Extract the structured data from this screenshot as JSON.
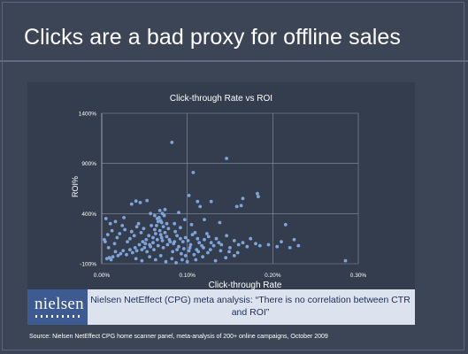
{
  "slide": {
    "title": "Clicks are a bad proxy for offline sales",
    "banner_logo": "nielsen",
    "banner_text": "Nielsen NetEffect (CPG) meta analysis: “There is no correlation between CTR and ROI”",
    "source": "Source: Nielsen NetEffect CPG home scanner panel, meta-analysis of 200+ online campaigns, October 2009"
  },
  "colors": {
    "background": "#3b4556",
    "chart_background": "#333d4d",
    "point": "#7fa5dc",
    "banner": "#dde3ee",
    "logo": "#3d5a92"
  },
  "chart_data": {
    "type": "scatter",
    "title": "Click-through Rate vs ROI",
    "xlabel": "Click-through Rate",
    "ylabel": "ROI%",
    "xlim": [
      0,
      0.3
    ],
    "ylim": [
      -100,
      1400
    ],
    "x_ticks": [
      0,
      0.1,
      0.2,
      0.3
    ],
    "x_tick_labels": [
      "0.00%",
      "0.10%",
      "0.20%",
      "0.30%"
    ],
    "y_ticks": [
      -100,
      400,
      900,
      1400
    ],
    "y_tick_labels": [
      "-100%",
      "400%",
      "900%",
      "1400%"
    ],
    "grid": true,
    "legend": false,
    "series": [
      {
        "points": [
          [
            0.082,
            1110
          ],
          [
            0.146,
            950
          ],
          [
            0.107,
            810
          ],
          [
            0.165,
            550
          ],
          [
            0.102,
            580
          ],
          [
            0.182,
            600
          ],
          [
            0.183,
            570
          ],
          [
            0.035,
            495
          ],
          [
            0.04,
            525
          ],
          [
            0.045,
            510
          ],
          [
            0.053,
            530
          ],
          [
            0.158,
            470
          ],
          [
            0.128,
            520
          ],
          [
            0.163,
            480
          ],
          [
            0.112,
            520
          ],
          [
            0.115,
            470
          ],
          [
            0.09,
            410
          ],
          [
            0.074,
            440
          ],
          [
            0.071,
            400
          ],
          [
            0.068,
            430
          ],
          [
            0.062,
            380
          ],
          [
            0.067,
            360
          ],
          [
            0.066,
            320
          ],
          [
            0.064,
            280
          ],
          [
            0.07,
            310
          ],
          [
            0.072,
            270
          ],
          [
            0.076,
            300
          ],
          [
            0.078,
            250
          ],
          [
            0.074,
            210
          ],
          [
            0.069,
            190
          ],
          [
            0.063,
            200
          ],
          [
            0.06,
            160
          ],
          [
            0.055,
            180
          ],
          [
            0.052,
            140
          ],
          [
            0.049,
            250
          ],
          [
            0.046,
            210
          ],
          [
            0.043,
            300
          ],
          [
            0.041,
            270
          ],
          [
            0.038,
            180
          ],
          [
            0.035,
            220
          ],
          [
            0.033,
            150
          ],
          [
            0.03,
            120
          ],
          [
            0.027,
            240
          ],
          [
            0.024,
            280
          ],
          [
            0.021,
            200
          ],
          [
            0.018,
            160
          ],
          [
            0.015,
            100
          ],
          [
            0.012,
            230
          ],
          [
            0.01,
            300
          ],
          [
            0.008,
            60
          ],
          [
            0.007,
            190
          ],
          [
            0.016,
            320
          ],
          [
            0.026,
            360
          ],
          [
            0.005,
            350
          ],
          [
            0.003,
            140
          ],
          [
            0.004,
            120
          ],
          [
            0.086,
            220
          ],
          [
            0.088,
            180
          ],
          [
            0.092,
            150
          ],
          [
            0.095,
            120
          ],
          [
            0.098,
            160
          ],
          [
            0.101,
            130
          ],
          [
            0.104,
            90
          ],
          [
            0.106,
            190
          ],
          [
            0.109,
            210
          ],
          [
            0.112,
            150
          ],
          [
            0.114,
            110
          ],
          [
            0.117,
            80
          ],
          [
            0.12,
            140
          ],
          [
            0.123,
            200
          ],
          [
            0.125,
            170
          ],
          [
            0.128,
            110
          ],
          [
            0.131,
            80
          ],
          [
            0.134,
            150
          ],
          [
            0.137,
            110
          ],
          [
            0.14,
            90
          ],
          [
            0.146,
            180
          ],
          [
            0.15,
            60
          ],
          [
            0.155,
            130
          ],
          [
            0.16,
            90
          ],
          [
            0.165,
            110
          ],
          [
            0.17,
            70
          ],
          [
            0.174,
            150
          ],
          [
            0.18,
            100
          ],
          [
            0.185,
            80
          ],
          [
            0.195,
            90
          ],
          [
            0.205,
            70
          ],
          [
            0.21,
            120
          ],
          [
            0.215,
            290
          ],
          [
            0.225,
            140
          ],
          [
            0.23,
            80
          ],
          [
            0.22,
            60
          ],
          [
            0.138,
            310
          ],
          [
            0.12,
            340
          ],
          [
            0.097,
            340
          ],
          [
            0.105,
            290
          ],
          [
            0.085,
            300
          ],
          [
            0.092,
            260
          ],
          [
            0.08,
            120
          ],
          [
            0.077,
            90
          ],
          [
            0.072,
            60
          ],
          [
            0.066,
            80
          ],
          [
            0.061,
            40
          ],
          [
            0.057,
            70
          ],
          [
            0.053,
            20
          ],
          [
            0.05,
            60
          ],
          [
            0.047,
            40
          ],
          [
            0.044,
            90
          ],
          [
            0.041,
            30
          ],
          [
            0.039,
            60
          ],
          [
            0.036,
            10
          ],
          [
            0.033,
            40
          ],
          [
            0.029,
            -10
          ],
          [
            0.025,
            30
          ],
          [
            0.022,
            0
          ],
          [
            0.019,
            -20
          ],
          [
            0.016,
            20
          ],
          [
            0.013,
            -30
          ],
          [
            0.011,
            -60
          ],
          [
            0.009,
            -40
          ],
          [
            0.006,
            -50
          ],
          [
            0.083,
            20
          ],
          [
            0.088,
            40
          ],
          [
            0.093,
            0
          ],
          [
            0.098,
            -20
          ],
          [
            0.102,
            30
          ],
          [
            0.108,
            -10
          ],
          [
            0.113,
            20
          ],
          [
            0.118,
            -30
          ],
          [
            0.124,
            10
          ],
          [
            0.133,
            -70
          ],
          [
            0.145,
            -40
          ],
          [
            0.155,
            -20
          ],
          [
            0.04,
            -50
          ],
          [
            0.047,
            -70
          ],
          [
            0.056,
            -30
          ],
          [
            0.063,
            -60
          ],
          [
            0.069,
            -20
          ],
          [
            0.075,
            -80
          ],
          [
            0.082,
            -50
          ],
          [
            0.087,
            -90
          ],
          [
            0.094,
            -60
          ],
          [
            0.1,
            -80
          ],
          [
            0.11,
            -60
          ],
          [
            0.285,
            -70
          ],
          [
            0.058,
            280
          ],
          [
            0.062,
            240
          ],
          [
            0.057,
            400
          ],
          [
            0.065,
            350
          ],
          [
            0.069,
            330
          ],
          [
            0.073,
            380
          ],
          [
            0.068,
            230
          ],
          [
            0.07,
            160
          ],
          [
            0.065,
            140
          ],
          [
            0.071,
            130
          ],
          [
            0.076,
            170
          ],
          [
            0.079,
            140
          ],
          [
            0.084,
            100
          ],
          [
            0.09,
            70
          ],
          [
            0.096,
            50
          ],
          [
            0.103,
            60
          ],
          [
            0.111,
            40
          ],
          [
            0.119,
            60
          ],
          [
            0.127,
            40
          ],
          [
            0.139,
            30
          ],
          [
            0.149,
            20
          ],
          [
            0.159,
            10
          ],
          [
            0.085,
            120
          ],
          [
            0.06,
            110
          ],
          [
            0.056,
            90
          ],
          [
            0.051,
            100
          ],
          [
            0.048,
            120
          ]
        ]
      }
    ]
  }
}
